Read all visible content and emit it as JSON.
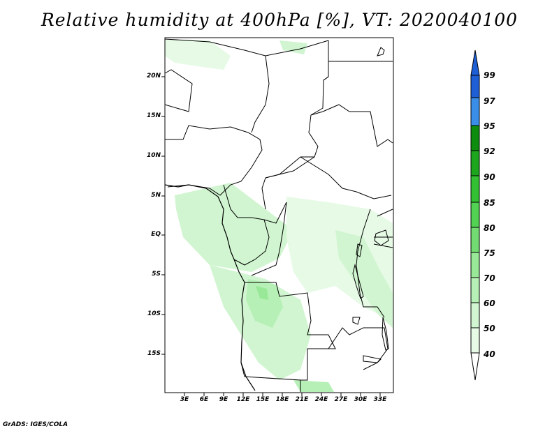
{
  "title": "Relative humidity at 400hPa [%], VT: 2020040100",
  "credit": "GrADS: IGES/COLA",
  "map": {
    "lat_labels": [
      "20N",
      "15N",
      "10N",
      "5N",
      "EQ",
      "5S",
      "10S",
      "15S"
    ],
    "lon_labels": [
      "3E",
      "6E",
      "9E",
      "12E",
      "15E",
      "18E",
      "21E",
      "24E",
      "27E",
      "30E",
      "33E"
    ],
    "lon_range": [
      0,
      35
    ],
    "lat_range": [
      -20,
      25
    ]
  },
  "colorbar": {
    "labels": [
      "99",
      "97",
      "95",
      "92",
      "90",
      "85",
      "80",
      "75",
      "70",
      "60",
      "50",
      "40"
    ],
    "colors": [
      "#1f5fd6",
      "#3a8ee8",
      "#0e8c0e",
      "#1ea51e",
      "#33c033",
      "#52d152",
      "#72dc72",
      "#98e898",
      "#b6f0b6",
      "#d0f5d0",
      "#e6fae6",
      "#ffffff"
    ]
  }
}
